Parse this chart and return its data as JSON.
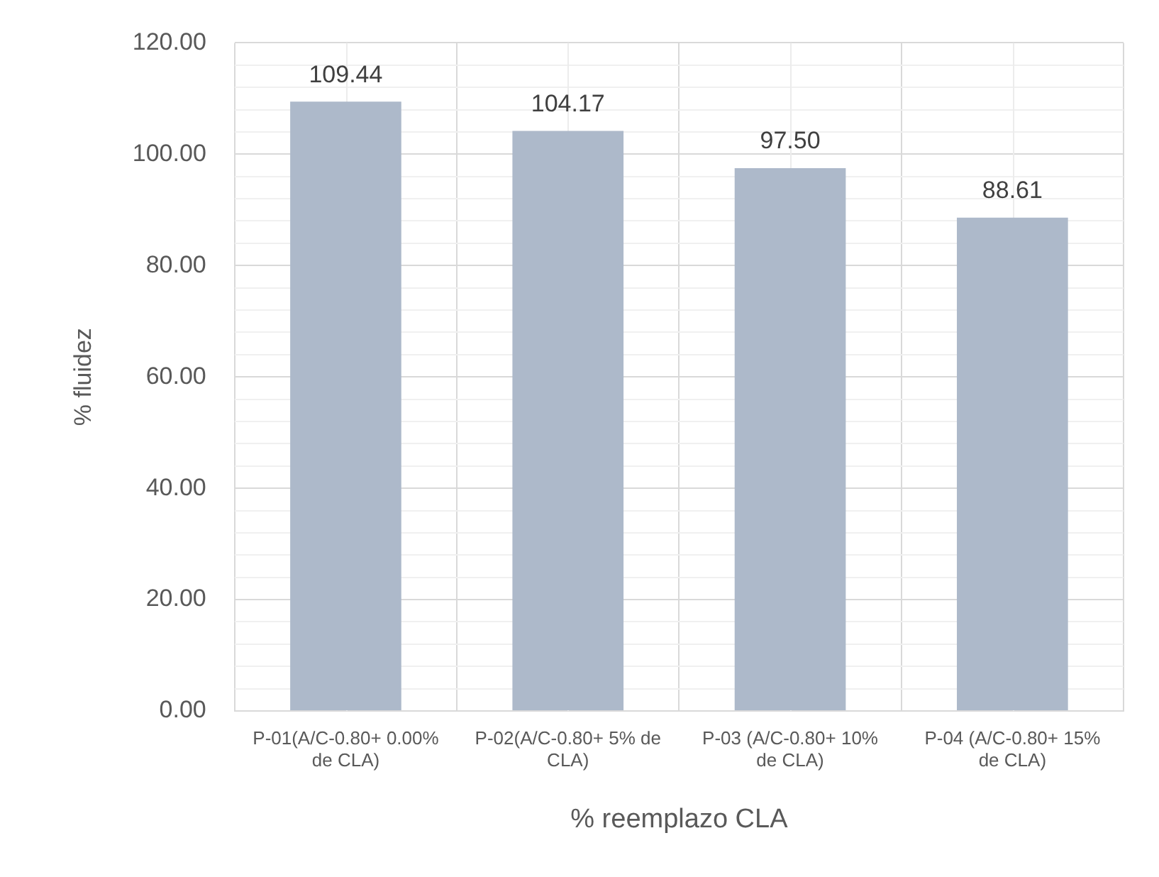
{
  "chart_data": {
    "type": "bar",
    "xlabel": "% reemplazo CLA",
    "ylabel": "% fluidez",
    "categories": [
      "P-01(A/C-0.80+ 0.00% de CLA)",
      "P-02(A/C-0.80+ 5% de CLA)",
      "P-03 (A/C-0.80+ 10% de CLA)",
      "P-04 (A/C-0.80+ 15% de CLA)"
    ],
    "values": [
      109.44,
      104.17,
      97.5,
      88.61
    ],
    "color": "#adb9ca",
    "value_labels": [
      "109.44",
      "104.17",
      "97.50",
      "88.61"
    ],
    "ylim": [
      0,
      120
    ],
    "yticks": [
      {
        "value": 0,
        "label": "0.00"
      },
      {
        "value": 4,
        "label": null
      },
      {
        "value": 8,
        "label": null
      },
      {
        "value": 12,
        "label": null
      },
      {
        "value": 16,
        "label": null
      },
      {
        "value": 20,
        "label": "20.00"
      },
      {
        "value": 24,
        "label": null
      },
      {
        "value": 28,
        "label": null
      },
      {
        "value": 32,
        "label": null
      },
      {
        "value": 36,
        "label": null
      },
      {
        "value": 40,
        "label": "40.00"
      },
      {
        "value": 44,
        "label": null
      },
      {
        "value": 48,
        "label": null
      },
      {
        "value": 52,
        "label": null
      },
      {
        "value": 56,
        "label": null
      },
      {
        "value": 60,
        "label": "60.00"
      },
      {
        "value": 64,
        "label": null
      },
      {
        "value": 68,
        "label": null
      },
      {
        "value": 72,
        "label": null
      },
      {
        "value": 76,
        "label": null
      },
      {
        "value": 80,
        "label": "80.00"
      },
      {
        "value": 84,
        "label": null
      },
      {
        "value": 88,
        "label": null
      },
      {
        "value": 92,
        "label": null
      },
      {
        "value": 96,
        "label": null
      },
      {
        "value": 100,
        "label": "100.00"
      },
      {
        "value": 104,
        "label": null
      },
      {
        "value": 108,
        "label": null
      },
      {
        "value": 112,
        "label": null
      },
      {
        "value": 116,
        "label": null
      },
      {
        "value": 120,
        "label": "120.00"
      }
    ],
    "grid": true,
    "legend": false
  }
}
